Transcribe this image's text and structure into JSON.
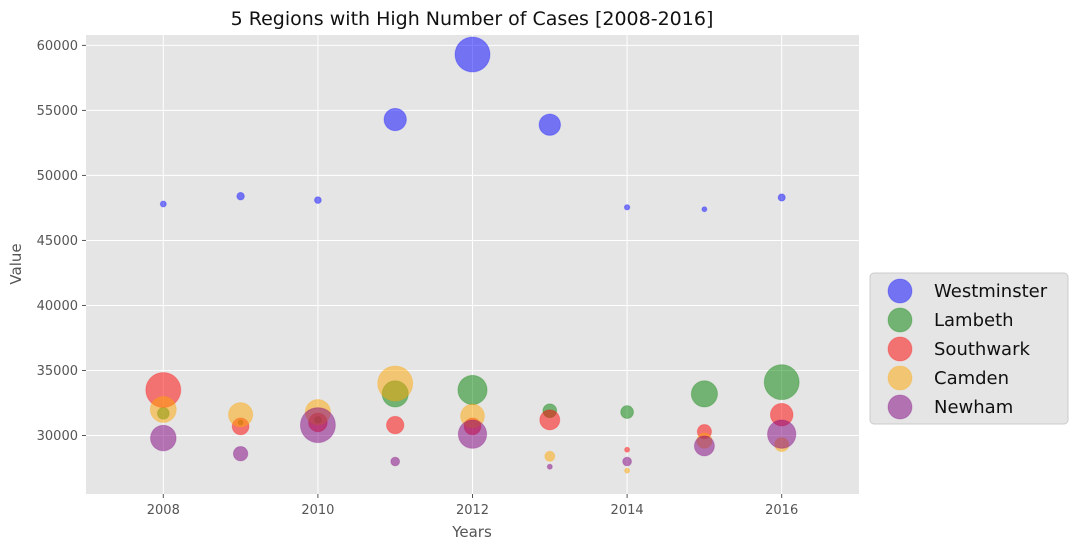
{
  "chart_data": {
    "type": "scatter",
    "title": "5 Regions with High Number of Cases [2008-2016]",
    "xlabel": "Years",
    "ylabel": "Value",
    "xlim": [
      2007,
      2017
    ],
    "ylim": [
      25500,
      60800
    ],
    "xticks": [
      2008,
      2010,
      2012,
      2014,
      2016
    ],
    "yticks": [
      30000,
      35000,
      40000,
      45000,
      50000,
      55000,
      60000
    ],
    "grid": true,
    "legend_position": "right",
    "bubble_size_encodes": "value",
    "series": [
      {
        "name": "Westminster",
        "color": "#0000ff",
        "points": [
          {
            "x": 2008,
            "y": 47800
          },
          {
            "x": 2009,
            "y": 48400
          },
          {
            "x": 2010,
            "y": 48100
          },
          {
            "x": 2011,
            "y": 54300
          },
          {
            "x": 2012,
            "y": 59300
          },
          {
            "x": 2013,
            "y": 53900
          },
          {
            "x": 2014,
            "y": 47550
          },
          {
            "x": 2015,
            "y": 47400
          },
          {
            "x": 2016,
            "y": 48300
          }
        ]
      },
      {
        "name": "Lambeth",
        "color": "#008000",
        "points": [
          {
            "x": 2008,
            "y": 31700
          },
          {
            "x": 2009,
            "y": 31000
          },
          {
            "x": 2010,
            "y": 31200
          },
          {
            "x": 2011,
            "y": 33200
          },
          {
            "x": 2012,
            "y": 33500
          },
          {
            "x": 2013,
            "y": 31900
          },
          {
            "x": 2014,
            "y": 31800
          },
          {
            "x": 2015,
            "y": 33200
          },
          {
            "x": 2016,
            "y": 34100
          }
        ]
      },
      {
        "name": "Southwark",
        "color": "#ff0000",
        "points": [
          {
            "x": 2008,
            "y": 33500
          },
          {
            "x": 2009,
            "y": 30700
          },
          {
            "x": 2010,
            "y": 31000
          },
          {
            "x": 2011,
            "y": 30800
          },
          {
            "x": 2012,
            "y": 30700
          },
          {
            "x": 2013,
            "y": 31200
          },
          {
            "x": 2014,
            "y": 28900
          },
          {
            "x": 2015,
            "y": 30300
          },
          {
            "x": 2016,
            "y": 31600
          }
        ]
      },
      {
        "name": "Camden",
        "color": "#ffa500",
        "points": [
          {
            "x": 2008,
            "y": 32000
          },
          {
            "x": 2009,
            "y": 31600
          },
          {
            "x": 2010,
            "y": 31800
          },
          {
            "x": 2011,
            "y": 34000
          },
          {
            "x": 2012,
            "y": 31500
          },
          {
            "x": 2013,
            "y": 28400
          },
          {
            "x": 2014,
            "y": 27300
          },
          {
            "x": 2015,
            "y": 29600
          },
          {
            "x": 2016,
            "y": 29300
          }
        ]
      },
      {
        "name": "Newham",
        "color": "#800080",
        "points": [
          {
            "x": 2008,
            "y": 29800
          },
          {
            "x": 2009,
            "y": 28600
          },
          {
            "x": 2010,
            "y": 30800
          },
          {
            "x": 2011,
            "y": 28000
          },
          {
            "x": 2012,
            "y": 30100
          },
          {
            "x": 2013,
            "y": 27600
          },
          {
            "x": 2014,
            "y": 28000
          },
          {
            "x": 2015,
            "y": 29200
          },
          {
            "x": 2016,
            "y": 30100
          }
        ]
      }
    ]
  }
}
